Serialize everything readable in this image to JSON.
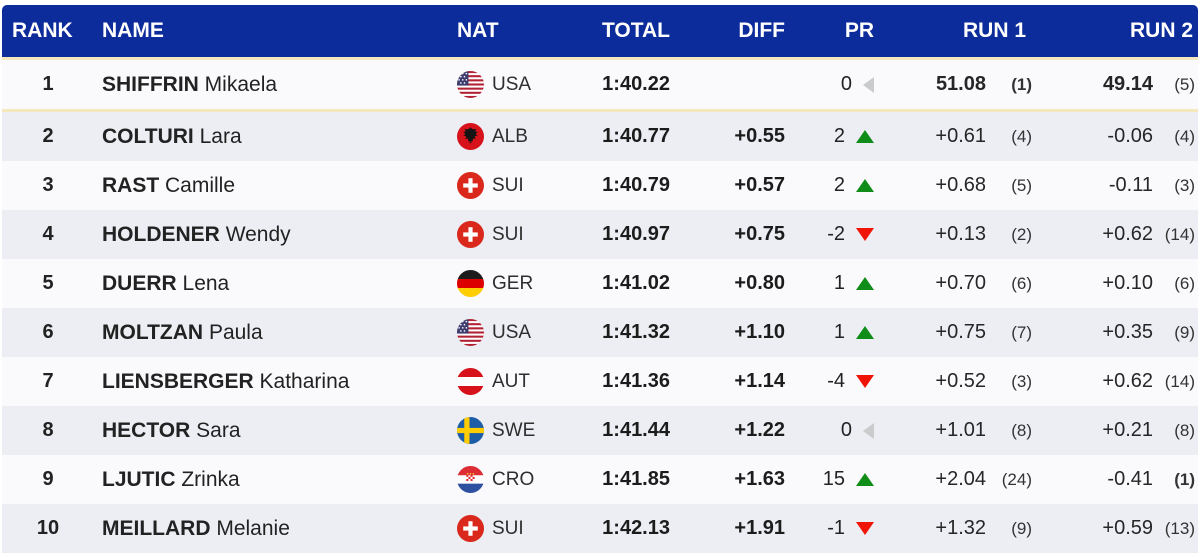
{
  "header": {
    "rank": "RANK",
    "name": "NAME",
    "nat": "NAT",
    "total": "TOTAL",
    "diff": "DIFF",
    "pr": "PR",
    "run1": "RUN 1",
    "run2": "RUN 2"
  },
  "colors": {
    "header_bg": "#0d2c9b",
    "row_main": "#fafafc",
    "row_alt": "#eceef4",
    "leader_line": "#f5e8be",
    "up": "#108c18",
    "down": "#ef1405",
    "neutral": "#c9cbcc"
  },
  "rows": [
    {
      "rank": "1",
      "last": "SHIFFRIN",
      "first": "Mikaela",
      "nat": "USA",
      "flag": "usa",
      "total": "1:40.22",
      "diff": "",
      "pr": "0",
      "pr_dir": "neutral",
      "run1": "51.08",
      "run1_rank": "(1)",
      "run1_bold": true,
      "run1_rank_bold": true,
      "run2": "49.14",
      "run2_rank": "(5)",
      "run2_bold": true,
      "run2_rank_bold": false
    },
    {
      "rank": "2",
      "last": "COLTURI",
      "first": "Lara",
      "nat": "ALB",
      "flag": "alb",
      "total": "1:40.77",
      "diff": "+0.55",
      "pr": "2",
      "pr_dir": "up",
      "run1": "+0.61",
      "run1_rank": "(4)",
      "run2": "-0.06",
      "run2_rank": "(4)"
    },
    {
      "rank": "3",
      "last": "RAST",
      "first": "Camille",
      "nat": "SUI",
      "flag": "sui",
      "total": "1:40.79",
      "diff": "+0.57",
      "pr": "2",
      "pr_dir": "up",
      "run1": "+0.68",
      "run1_rank": "(5)",
      "run2": "-0.11",
      "run2_rank": "(3)"
    },
    {
      "rank": "4",
      "last": "HOLDENER",
      "first": "Wendy",
      "nat": "SUI",
      "flag": "sui",
      "total": "1:40.97",
      "diff": "+0.75",
      "pr": "-2",
      "pr_dir": "down",
      "run1": "+0.13",
      "run1_rank": "(2)",
      "run2": "+0.62",
      "run2_rank": "(14)"
    },
    {
      "rank": "5",
      "last": "DUERR",
      "first": "Lena",
      "nat": "GER",
      "flag": "ger",
      "total": "1:41.02",
      "diff": "+0.80",
      "pr": "1",
      "pr_dir": "up",
      "run1": "+0.70",
      "run1_rank": "(6)",
      "run2": "+0.10",
      "run2_rank": "(6)"
    },
    {
      "rank": "6",
      "last": "MOLTZAN",
      "first": "Paula",
      "nat": "USA",
      "flag": "usa",
      "total": "1:41.32",
      "diff": "+1.10",
      "pr": "1",
      "pr_dir": "up",
      "run1": "+0.75",
      "run1_rank": "(7)",
      "run2": "+0.35",
      "run2_rank": "(9)"
    },
    {
      "rank": "7",
      "last": "LIENSBERGER",
      "first": "Katharina",
      "nat": "AUT",
      "flag": "aut",
      "total": "1:41.36",
      "diff": "+1.14",
      "pr": "-4",
      "pr_dir": "down",
      "run1": "+0.52",
      "run1_rank": "(3)",
      "run2": "+0.62",
      "run2_rank": "(14)"
    },
    {
      "rank": "8",
      "last": "HECTOR",
      "first": "Sara",
      "nat": "SWE",
      "flag": "swe",
      "total": "1:41.44",
      "diff": "+1.22",
      "pr": "0",
      "pr_dir": "neutral",
      "run1": "+1.01",
      "run1_rank": "(8)",
      "run2": "+0.21",
      "run2_rank": "(8)"
    },
    {
      "rank": "9",
      "last": "LJUTIC",
      "first": "Zrinka",
      "nat": "CRO",
      "flag": "cro",
      "total": "1:41.85",
      "diff": "+1.63",
      "pr": "15",
      "pr_dir": "up",
      "run1": "+2.04",
      "run1_rank": "(24)",
      "run2": "-0.41",
      "run2_rank": "(1)",
      "run2_rank_bold": true
    },
    {
      "rank": "10",
      "last": "MEILLARD",
      "first": "Melanie",
      "nat": "SUI",
      "flag": "sui",
      "total": "1:42.13",
      "diff": "+1.91",
      "pr": "-1",
      "pr_dir": "down",
      "run1": "+1.32",
      "run1_rank": "(9)",
      "run2": "+0.59",
      "run2_rank": "(13)"
    }
  ]
}
